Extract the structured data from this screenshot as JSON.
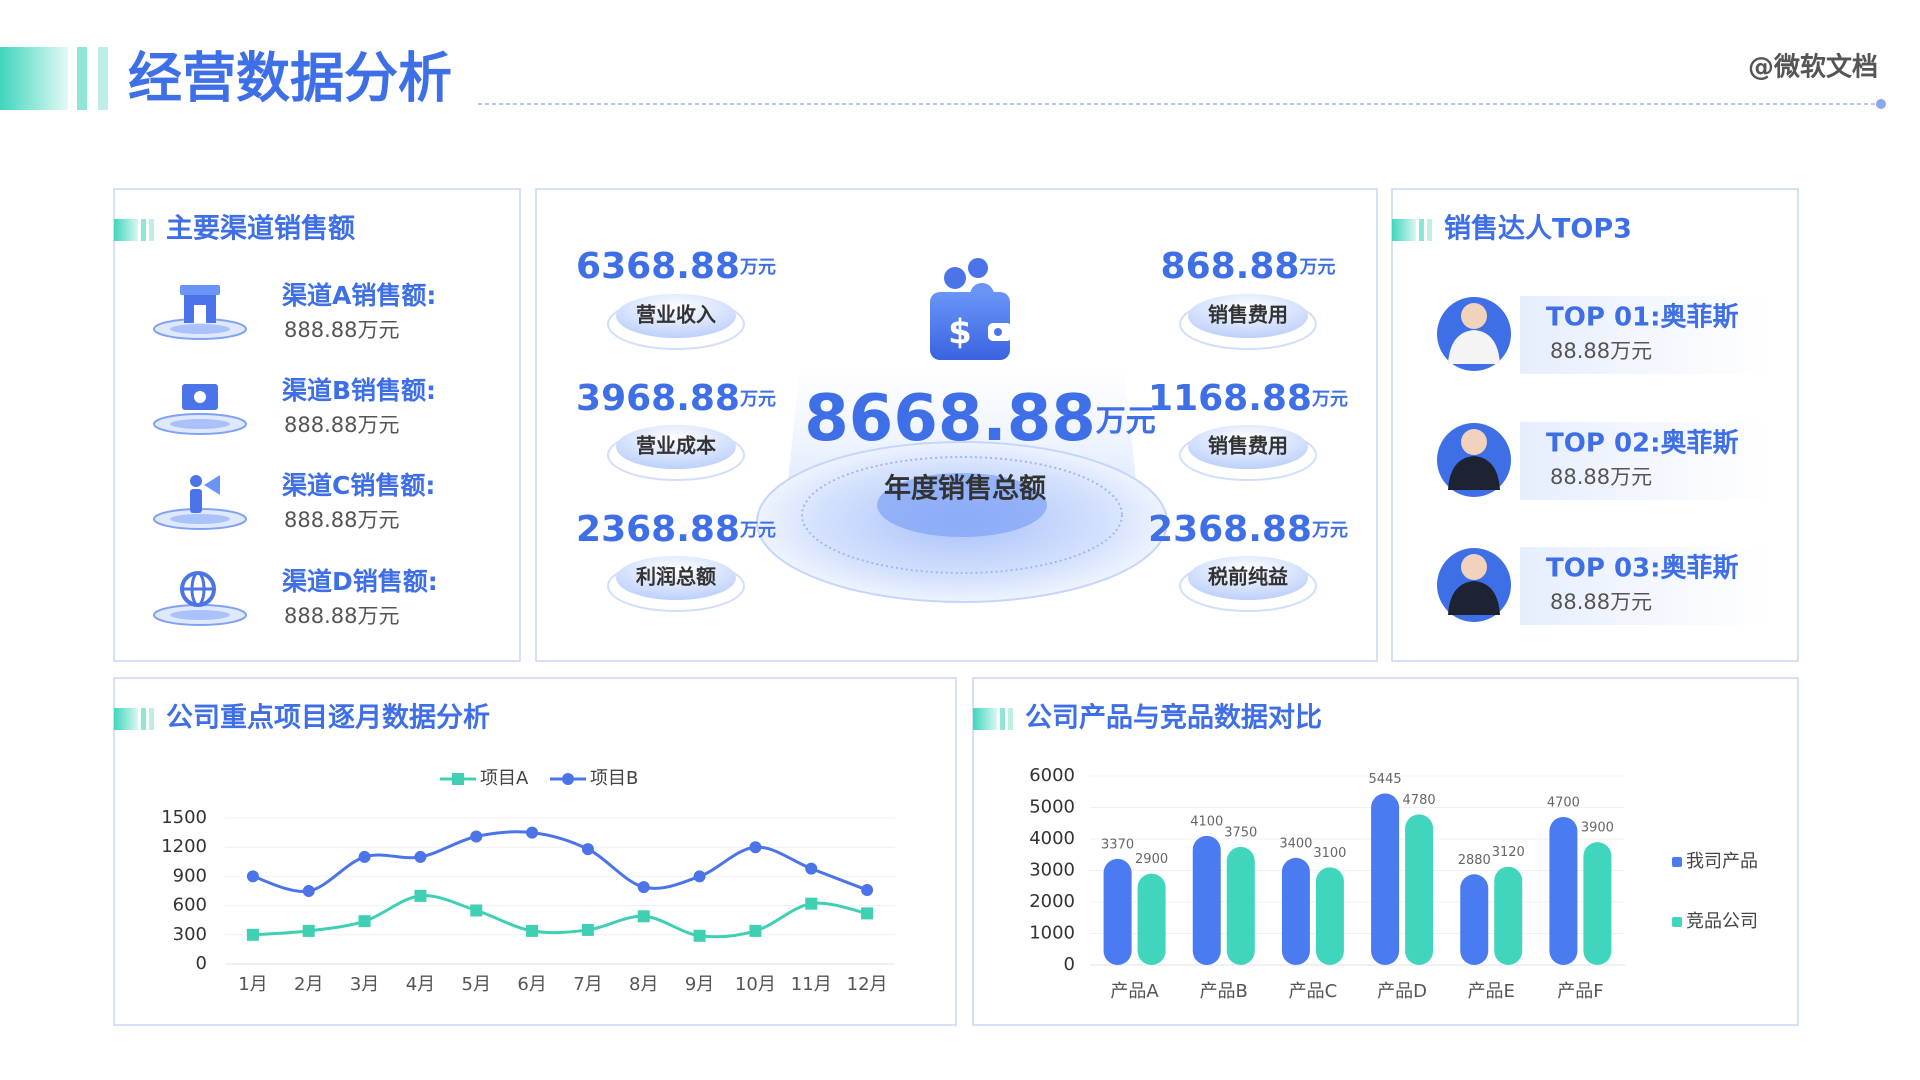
{
  "header": {
    "title": "经营数据分析",
    "brand": "@微软文档"
  },
  "channels": {
    "title": "主要渠道销售额",
    "items": [
      {
        "label": "渠道A销售额:",
        "value": "888.88万元"
      },
      {
        "label": "渠道B销售额:",
        "value": "888.88万元"
      },
      {
        "label": "渠道C销售额:",
        "value": "888.88万元"
      },
      {
        "label": "渠道D销售额:",
        "value": "888.88万元"
      }
    ]
  },
  "summary": {
    "total": {
      "value": "8668.88",
      "unit": "万元",
      "label": "年度销售总额"
    },
    "left": [
      {
        "value": "6368.88",
        "unit": "万元",
        "label": "营业收入"
      },
      {
        "value": "3968.88",
        "unit": "万元",
        "label": "营业成本"
      },
      {
        "value": "2368.88",
        "unit": "万元",
        "label": "利润总额"
      }
    ],
    "right": [
      {
        "value": "868.88",
        "unit": "万元",
        "label": "销售费用"
      },
      {
        "value": "1168.88",
        "unit": "万元",
        "label": "销售费用"
      },
      {
        "value": "2368.88",
        "unit": "万元",
        "label": "税前纯益"
      }
    ]
  },
  "top_sales": {
    "title": "销售达人TOP3",
    "items": [
      {
        "name": "TOP 01:奥菲斯",
        "value": "88.88万元"
      },
      {
        "name": "TOP 02:奥菲斯",
        "value": "88.88万元"
      },
      {
        "name": "TOP 03:奥菲斯",
        "value": "88.88万元"
      }
    ]
  },
  "chart_data": [
    {
      "type": "line",
      "title": "公司重点项目逐月数据分析",
      "categories": [
        "1月",
        "2月",
        "3月",
        "4月",
        "5月",
        "6月",
        "7月",
        "8月",
        "9月",
        "10月",
        "11月",
        "12月"
      ],
      "series": [
        {
          "name": "项目A",
          "color": "#3fd0b4",
          "values": [
            300,
            340,
            440,
            700,
            550,
            340,
            350,
            490,
            290,
            340,
            620,
            520
          ]
        },
        {
          "name": "项目B",
          "color": "#4a74e8",
          "values": [
            900,
            750,
            1100,
            1100,
            1310,
            1350,
            1180,
            790,
            900,
            1200,
            980,
            760
          ]
        }
      ],
      "ylim": [
        0,
        1500
      ],
      "yticks": [
        0,
        300,
        600,
        900,
        1200,
        1500
      ],
      "grid": true,
      "legend": "top"
    },
    {
      "type": "bar",
      "title": "公司产品与竞品数据对比",
      "categories": [
        "产品A",
        "产品B",
        "产品C",
        "产品D",
        "产品E",
        "产品F"
      ],
      "series": [
        {
          "name": "我司产品",
          "color": "#4a7bf0",
          "values": [
            3370,
            4100,
            3400,
            5445,
            2880,
            4700
          ]
        },
        {
          "name": "竞品公司",
          "color": "#3fd6bd",
          "values": [
            2900,
            3750,
            3100,
            4780,
            3120,
            3900
          ]
        }
      ],
      "ylim": [
        0,
        6000
      ],
      "yticks": [
        0,
        1000,
        2000,
        3000,
        4000,
        5000,
        6000
      ],
      "grid": true,
      "legend": "right"
    }
  ]
}
